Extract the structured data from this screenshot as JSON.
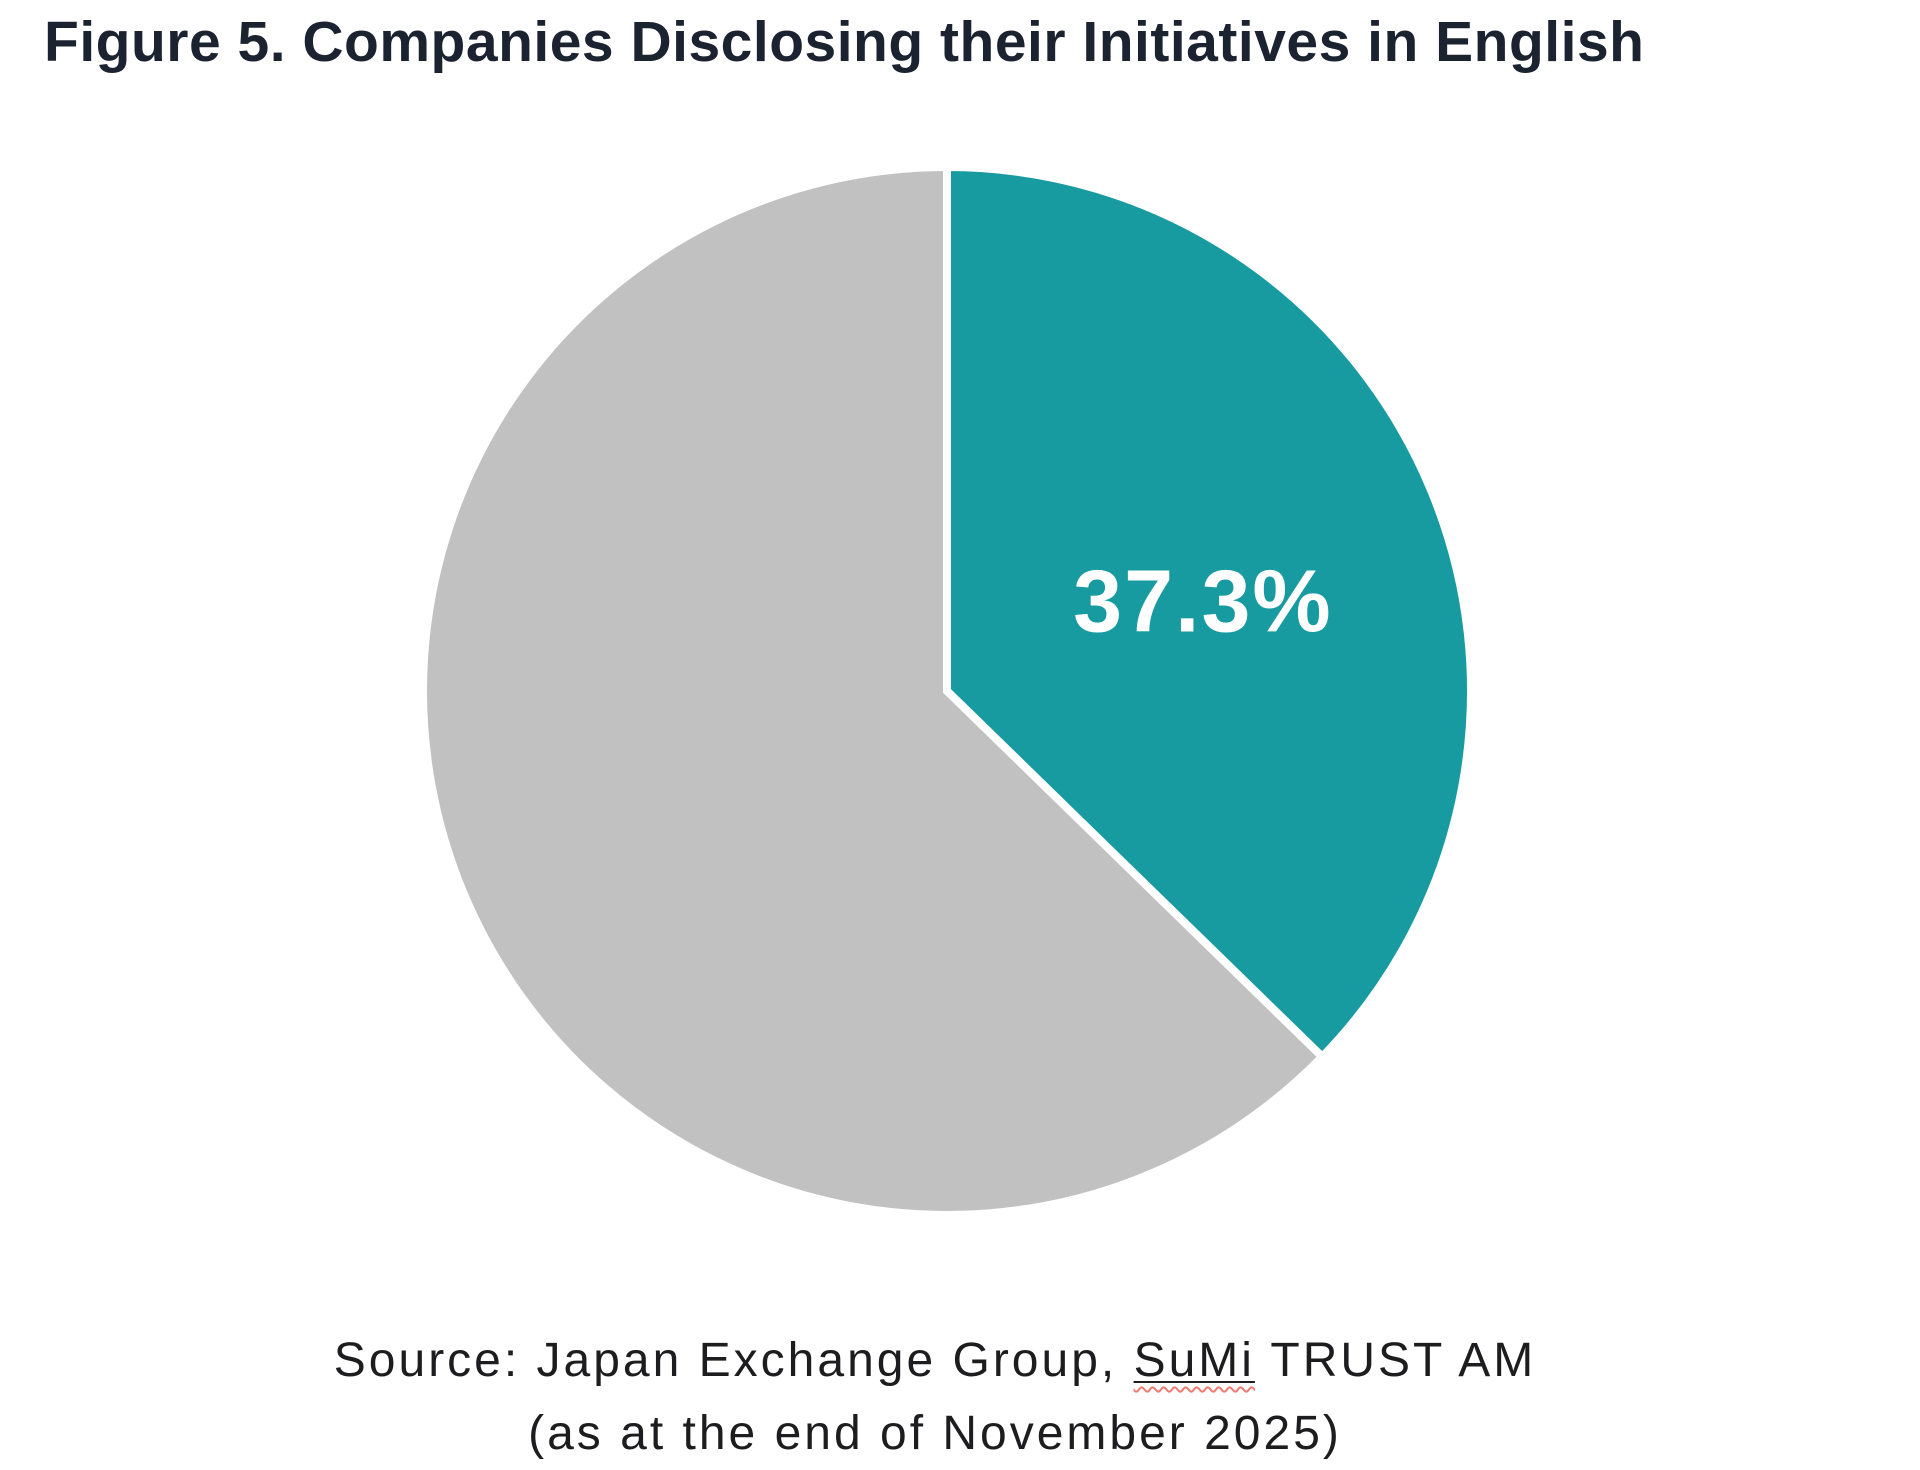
{
  "figure": {
    "title": "Figure 5. Companies Disclosing their Initiatives in English",
    "source_prefix": "Source: Japan Exchange Group, ",
    "source_misspelled_word": "SuMi",
    "source_suffix": " TRUST AM",
    "source_line2": "(as at the end of November 2025)"
  },
  "colors": {
    "accent_teal": "#189BA0",
    "slice_gray": "#C1C1C1",
    "title_navy": "#1B2330",
    "text_dark": "#1D1D1F",
    "spellcheck_red": "#EF7B72",
    "label_white": "#FFFFFF",
    "background": "#FFFFFF"
  },
  "chart_data": {
    "type": "pie",
    "title": "Figure 5. Companies Disclosing their Initiatives in English",
    "slices": [
      {
        "value": 37.3,
        "display_label": "37.3%",
        "color_key": "accent_teal"
      },
      {
        "value": 62.7,
        "display_label": "",
        "color_key": "slice_gray"
      }
    ],
    "start_angle_deg": -90,
    "direction": "clockwise",
    "legend": "none",
    "gap_stroke_px": 8,
    "label_radius_factor": 0.53,
    "source": "Source: Japan Exchange Group, SuMi TRUST AM (as at the end of November 2025)"
  }
}
